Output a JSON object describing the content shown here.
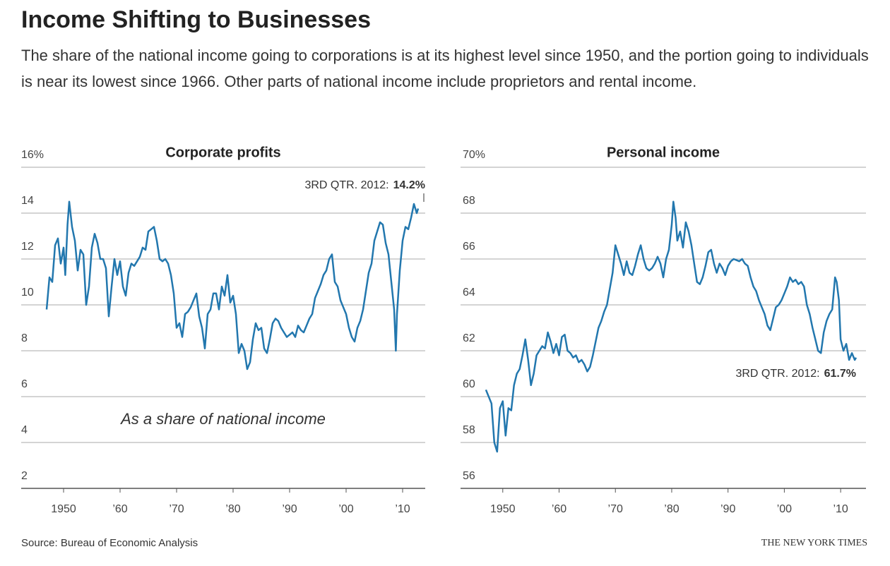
{
  "header": {
    "title": "Income Shifting to Businesses",
    "subtitle": "The share of the national income going to corporations is at its highest level since 1950, and the portion going to individuals is near its lowest since 1966. Other parts of national income include proprietors and rental income."
  },
  "footer": {
    "source": "Source: Bureau of Economic Analysis",
    "credit": "THE NEW YORK TIMES"
  },
  "chart_data": [
    {
      "type": "line",
      "title": "Corporate profits",
      "note": "As a share of national income",
      "annotation": {
        "text": "3RD QTR. 2012:",
        "label": "14.2%"
      },
      "xlim": [
        1942.5,
        2014
      ],
      "xticks": [
        1950,
        {
          "value": 1960,
          "label": "’60"
        },
        {
          "value": 1970,
          "label": "’70"
        },
        {
          "value": 1980,
          "label": "’80"
        },
        {
          "value": 1990,
          "label": "’90"
        },
        {
          "value": 2000,
          "label": "’00"
        },
        {
          "value": 2010,
          "label": "’10"
        }
      ],
      "ylim": [
        2,
        16
      ],
      "yticks": [
        2,
        4,
        6,
        8,
        10,
        12,
        14,
        {
          "value": 16,
          "label": "16%"
        }
      ],
      "grid": true,
      "series": [
        {
          "color": "#2277ae",
          "x": [
            1947,
            1947.5,
            1948,
            1948.5,
            1949,
            1949.5,
            1950,
            1950.3,
            1950.7,
            1951,
            1951.5,
            1952,
            1952.5,
            1953,
            1953.5,
            1954,
            1954.5,
            1955,
            1955.5,
            1956,
            1956.5,
            1957,
            1957.5,
            1958,
            1958.5,
            1959,
            1959.5,
            1960,
            1960.5,
            1961,
            1961.5,
            1962,
            1962.5,
            1963,
            1963.5,
            1964,
            1964.5,
            1965,
            1965.5,
            1966,
            1966.5,
            1967,
            1967.5,
            1968,
            1968.5,
            1969,
            1969.5,
            1970,
            1970.5,
            1971,
            1971.5,
            1972,
            1972.5,
            1973,
            1973.5,
            1974,
            1974.5,
            1975,
            1975.5,
            1976,
            1976.5,
            1977,
            1977.5,
            1978,
            1978.5,
            1979,
            1979.5,
            1980,
            1980.5,
            1981,
            1981.5,
            1982,
            1982.5,
            1983,
            1983.5,
            1984,
            1984.5,
            1985,
            1985.5,
            1986,
            1986.5,
            1987,
            1987.5,
            1988,
            1988.5,
            1989,
            1989.5,
            1990,
            1990.5,
            1991,
            1991.5,
            1992,
            1992.5,
            1993,
            1993.5,
            1994,
            1994.5,
            1995,
            1995.5,
            1996,
            1996.5,
            1997,
            1997.5,
            1998,
            1998.5,
            1999,
            1999.5,
            2000,
            2000.5,
            2001,
            2001.5,
            2002,
            2002.5,
            2003,
            2003.5,
            2004,
            2004.5,
            2005,
            2005.5,
            2006,
            2006.5,
            2007,
            2007.5,
            2008,
            2008.5,
            2008.8,
            2009,
            2009.5,
            2010,
            2010.5,
            2011,
            2011.5,
            2012,
            2012.5,
            2012.75
          ],
          "values": [
            9.8,
            11.2,
            11.0,
            12.6,
            12.9,
            11.8,
            12.5,
            11.3,
            13.5,
            14.5,
            13.4,
            12.8,
            11.5,
            12.4,
            12.2,
            10.0,
            10.8,
            12.5,
            13.1,
            12.7,
            12.0,
            12.0,
            11.6,
            9.5,
            10.8,
            12.0,
            11.3,
            11.9,
            10.8,
            10.4,
            11.4,
            11.8,
            11.7,
            11.9,
            12.1,
            12.5,
            12.4,
            13.2,
            13.3,
            13.4,
            12.8,
            12.0,
            11.9,
            12.0,
            11.8,
            11.3,
            10.5,
            9.0,
            9.2,
            8.6,
            9.6,
            9.7,
            9.9,
            10.2,
            10.5,
            9.5,
            9.0,
            8.1,
            9.6,
            9.8,
            10.5,
            10.5,
            9.8,
            10.8,
            10.4,
            11.3,
            10.1,
            10.4,
            9.6,
            7.9,
            8.3,
            8.0,
            7.2,
            7.5,
            8.5,
            9.2,
            8.9,
            9.0,
            8.1,
            7.9,
            8.5,
            9.2,
            9.4,
            9.3,
            9.0,
            8.8,
            8.6,
            8.7,
            8.8,
            8.6,
            9.1,
            8.9,
            8.8,
            9.1,
            9.4,
            9.6,
            10.3,
            10.6,
            10.9,
            11.3,
            11.5,
            12.0,
            12.2,
            11.0,
            10.8,
            10.2,
            9.9,
            9.6,
            9.0,
            8.6,
            8.4,
            9.0,
            9.3,
            9.8,
            10.6,
            11.4,
            11.8,
            12.8,
            13.2,
            13.6,
            13.5,
            12.7,
            12.2,
            11.0,
            9.8,
            8.0,
            9.6,
            11.5,
            12.8,
            13.4,
            13.3,
            13.8,
            14.4,
            14.0,
            14.2
          ]
        }
      ]
    },
    {
      "type": "line",
      "title": "Personal income",
      "annotation": {
        "text": "3RD QTR. 2012:",
        "label": "61.7%"
      },
      "xlim": [
        1942.5,
        2014.5
      ],
      "xticks": [
        1950,
        {
          "value": 1960,
          "label": "’60"
        },
        {
          "value": 1970,
          "label": "’70"
        },
        {
          "value": 1980,
          "label": "’80"
        },
        {
          "value": 1990,
          "label": "’90"
        },
        {
          "value": 2000,
          "label": "’00"
        },
        {
          "value": 2010,
          "label": "’10"
        }
      ],
      "ylim": [
        56,
        70
      ],
      "yticks": [
        56,
        58,
        60,
        62,
        64,
        66,
        68,
        {
          "value": 70,
          "label": "70%"
        }
      ],
      "grid": true,
      "series": [
        {
          "color": "#2277ae",
          "x": [
            1947,
            1948,
            1948.5,
            1949,
            1949.5,
            1950,
            1950.5,
            1951,
            1951.5,
            1952,
            1952.5,
            1953,
            1953.5,
            1954,
            1954.5,
            1955,
            1955.5,
            1956,
            1956.5,
            1957,
            1957.5,
            1958,
            1958.5,
            1959,
            1959.5,
            1960,
            1960.5,
            1961,
            1961.5,
            1962,
            1962.5,
            1963,
            1963.5,
            1964,
            1964.5,
            1965,
            1965.5,
            1966,
            1966.5,
            1967,
            1967.5,
            1968,
            1968.5,
            1969,
            1969.5,
            1970,
            1970.5,
            1971,
            1971.5,
            1972,
            1972.5,
            1973,
            1973.5,
            1974,
            1974.5,
            1975,
            1975.5,
            1976,
            1976.5,
            1977,
            1977.5,
            1978,
            1978.5,
            1979,
            1979.5,
            1980,
            1980.3,
            1980.7,
            1981,
            1981.5,
            1982,
            1982.5,
            1983,
            1983.5,
            1984,
            1984.5,
            1985,
            1985.5,
            1986,
            1986.5,
            1987,
            1987.5,
            1988,
            1988.5,
            1989,
            1989.5,
            1990,
            1990.5,
            1991,
            1992,
            1992.5,
            1993,
            1993.5,
            1994,
            1994.5,
            1995,
            1995.5,
            1996,
            1996.5,
            1997,
            1997.5,
            1998,
            1998.5,
            1999,
            1999.5,
            2000,
            2000.5,
            2001,
            2001.5,
            2002,
            2002.5,
            2003,
            2003.5,
            2004,
            2004.5,
            2005,
            2005.5,
            2006,
            2006.5,
            2007,
            2007.5,
            2008,
            2008.5,
            2009,
            2009.3,
            2009.7,
            2010,
            2010.5,
            2011,
            2011.5,
            2012,
            2012.5,
            2012.75
          ],
          "values": [
            60.3,
            59.7,
            58.0,
            57.6,
            59.5,
            59.8,
            58.3,
            59.5,
            59.4,
            60.5,
            61.0,
            61.2,
            61.8,
            62.5,
            61.6,
            60.5,
            61.0,
            61.8,
            62.0,
            62.2,
            62.1,
            62.8,
            62.4,
            61.9,
            62.3,
            61.8,
            62.6,
            62.7,
            62.0,
            61.9,
            61.7,
            61.8,
            61.5,
            61.6,
            61.4,
            61.1,
            61.3,
            61.8,
            62.4,
            63.0,
            63.3,
            63.7,
            64.0,
            64.7,
            65.4,
            66.6,
            66.2,
            65.8,
            65.3,
            65.9,
            65.4,
            65.3,
            65.7,
            66.2,
            66.6,
            66.0,
            65.6,
            65.5,
            65.6,
            65.8,
            66.1,
            65.8,
            65.2,
            66.0,
            66.4,
            67.5,
            68.5,
            67.8,
            66.8,
            67.2,
            66.5,
            67.6,
            67.2,
            66.6,
            65.8,
            65.0,
            64.9,
            65.2,
            65.7,
            66.3,
            66.4,
            65.8,
            65.4,
            65.8,
            65.6,
            65.3,
            65.7,
            65.9,
            66.0,
            65.9,
            66.0,
            65.8,
            65.7,
            65.2,
            64.8,
            64.6,
            64.2,
            63.9,
            63.6,
            63.1,
            62.9,
            63.4,
            63.9,
            64.0,
            64.2,
            64.5,
            64.8,
            65.2,
            65.0,
            65.1,
            64.9,
            65.0,
            64.8,
            64.0,
            63.6,
            63.0,
            62.5,
            62.0,
            61.9,
            62.8,
            63.3,
            63.6,
            63.8,
            65.2,
            65.0,
            64.2,
            62.5,
            62.0,
            62.3,
            61.6,
            61.9,
            61.6,
            61.7
          ]
        }
      ]
    }
  ]
}
